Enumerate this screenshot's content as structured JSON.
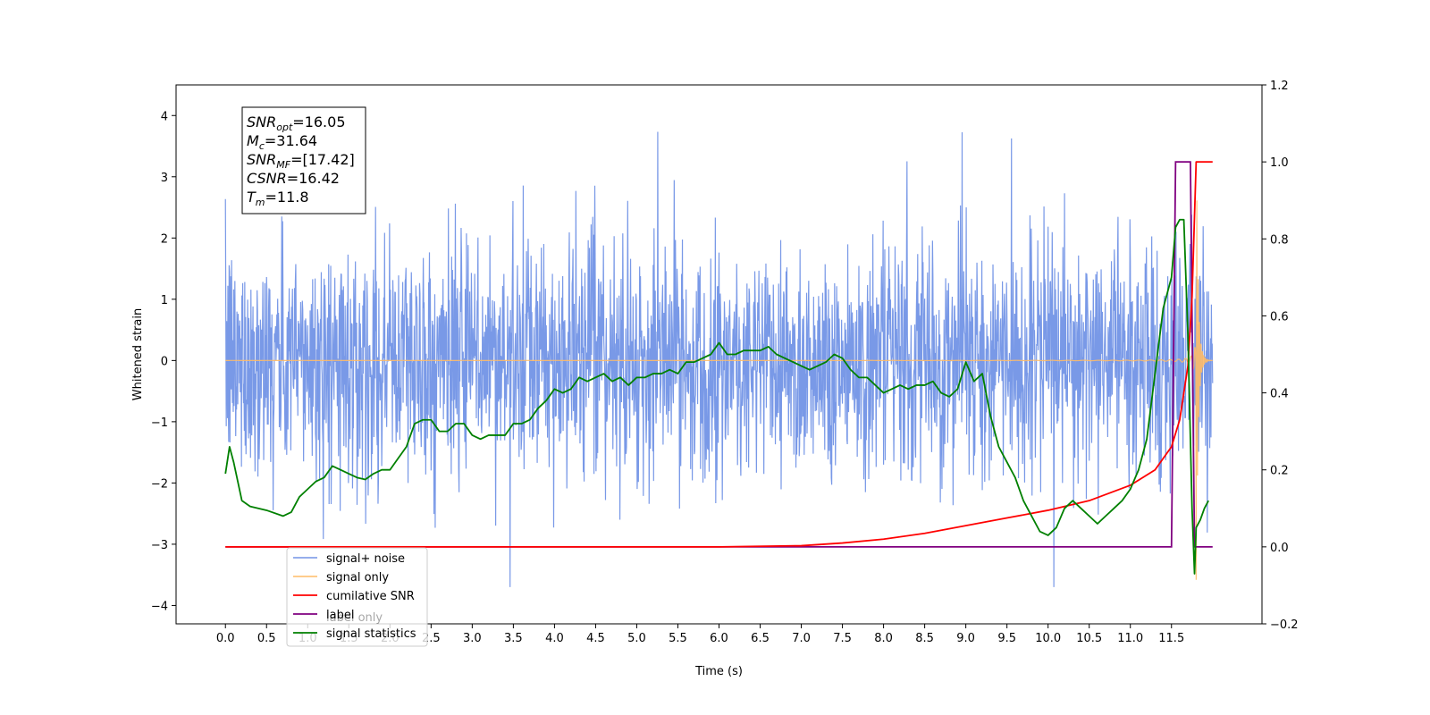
{
  "chart_data": {
    "type": "line",
    "xlabel": "Time (s)",
    "ylabel": "Whitened strain",
    "xlim": [
      -0.6,
      12.6
    ],
    "ylim_left": [
      -4.3,
      4.5
    ],
    "ylim_right": [
      -0.2,
      1.2
    ],
    "x_ticks": [
      "0.0",
      "0.5",
      "1.0",
      "1.5",
      "2.0",
      "2.5",
      "3.0",
      "3.5",
      "4.0",
      "4.5",
      "5.0",
      "5.5",
      "6.0",
      "6.5",
      "7.0",
      "7.5",
      "8.0",
      "8.5",
      "9.0",
      "9.5",
      "10.0",
      "10.5",
      "11.0",
      "11.5"
    ],
    "y_ticks_left": [
      4,
      3,
      2,
      1,
      0,
      -1,
      -2,
      -3,
      -4
    ],
    "y_ticks_left_labels": [
      "4",
      "3",
      "2",
      "1",
      "0",
      "−1",
      "−2",
      "−3",
      "−4"
    ],
    "y_ticks_right": [
      1.2,
      1.0,
      0.8,
      0.6,
      0.4,
      0.2,
      0.0,
      -0.2
    ],
    "y_ticks_right_labels": [
      "1.2",
      "1.0",
      "0.8",
      "0.6",
      "0.4",
      "0.2",
      "0.0",
      "−0.2"
    ],
    "grid": false,
    "legend_position": "lower-left",
    "stats_box": [
      {
        "main": "SNR",
        "sub": "opt",
        "value": "=16.05"
      },
      {
        "main": "M",
        "sub": "c",
        "value": "=31.64"
      },
      {
        "main": "SNR",
        "sub": "MF",
        "value": "=[17.42]"
      },
      {
        "main": "CSNR",
        "sub": "",
        "value": "=16.42"
      },
      {
        "main": "T",
        "sub": "m",
        "value": "=11.8"
      }
    ],
    "series": [
      {
        "name": "signal+ noise",
        "color": "#7293e6",
        "axis": "left",
        "x_range": [
          0.0,
          12.0
        ],
        "amplitude_std": 1.0,
        "peak": 4.1
      },
      {
        "name": "signal only",
        "color": "#ffbb66",
        "axis": "left",
        "x_range": [
          0.0,
          12.0
        ],
        "merger_time": 11.8,
        "peak_amplitude": 3.6
      },
      {
        "name": "cumilative SNR",
        "color": "#ff0000",
        "axis": "right",
        "x": [
          0.0,
          6.0,
          7.0,
          7.5,
          8.0,
          8.5,
          9.0,
          9.5,
          10.0,
          10.5,
          11.0,
          11.3,
          11.5,
          11.6,
          11.7,
          11.75,
          11.8,
          12.0
        ],
        "y": [
          0.0,
          0.0,
          0.003,
          0.01,
          0.02,
          0.035,
          0.055,
          0.075,
          0.095,
          0.12,
          0.16,
          0.2,
          0.26,
          0.33,
          0.47,
          0.65,
          1.0,
          1.0
        ]
      },
      {
        "name": "label",
        "color": "#800080",
        "axis": "right",
        "x": [
          0.0,
          11.5,
          11.55,
          11.73,
          11.78,
          12.0
        ],
        "y": [
          0.0,
          0.0,
          1.0,
          1.0,
          0.0,
          0.0
        ]
      },
      {
        "name": "label only",
        "color": "#800080",
        "axis": "right",
        "hidden_behind_legend": true
      },
      {
        "name": "signal statistics",
        "color": "#008000",
        "axis": "right",
        "x": [
          0.0,
          0.05,
          0.1,
          0.2,
          0.3,
          0.5,
          0.7,
          0.8,
          0.9,
          1.0,
          1.1,
          1.2,
          1.3,
          1.4,
          1.5,
          1.6,
          1.7,
          1.8,
          1.9,
          2.0,
          2.1,
          2.2,
          2.3,
          2.4,
          2.5,
          2.6,
          2.7,
          2.8,
          2.9,
          3.0,
          3.1,
          3.2,
          3.3,
          3.4,
          3.5,
          3.6,
          3.7,
          3.8,
          3.9,
          4.0,
          4.1,
          4.2,
          4.3,
          4.4,
          4.5,
          4.6,
          4.7,
          4.8,
          4.9,
          5.0,
          5.1,
          5.2,
          5.3,
          5.4,
          5.5,
          5.6,
          5.7,
          5.8,
          5.9,
          6.0,
          6.1,
          6.2,
          6.3,
          6.4,
          6.5,
          6.6,
          6.7,
          6.8,
          6.9,
          7.0,
          7.1,
          7.2,
          7.3,
          7.4,
          7.5,
          7.6,
          7.7,
          7.8,
          7.9,
          8.0,
          8.1,
          8.2,
          8.3,
          8.4,
          8.5,
          8.6,
          8.7,
          8.8,
          8.9,
          9.0,
          9.1,
          9.2,
          9.3,
          9.4,
          9.5,
          9.6,
          9.7,
          9.8,
          9.9,
          10.0,
          10.1,
          10.2,
          10.3,
          10.4,
          10.5,
          10.6,
          10.7,
          10.8,
          10.9,
          11.0,
          11.1,
          11.2,
          11.3,
          11.4,
          11.5,
          11.55,
          11.6,
          11.65,
          11.7,
          11.75,
          11.78,
          11.8,
          11.85,
          11.9,
          11.95
        ],
        "y": [
          0.19,
          0.26,
          0.22,
          0.12,
          0.105,
          0.095,
          0.08,
          0.09,
          0.13,
          0.15,
          0.17,
          0.18,
          0.21,
          0.2,
          0.19,
          0.18,
          0.175,
          0.19,
          0.2,
          0.2,
          0.23,
          0.26,
          0.32,
          0.33,
          0.33,
          0.3,
          0.3,
          0.32,
          0.32,
          0.29,
          0.28,
          0.29,
          0.29,
          0.29,
          0.32,
          0.32,
          0.33,
          0.36,
          0.38,
          0.41,
          0.4,
          0.41,
          0.44,
          0.43,
          0.44,
          0.45,
          0.43,
          0.44,
          0.42,
          0.44,
          0.44,
          0.45,
          0.45,
          0.46,
          0.45,
          0.48,
          0.48,
          0.49,
          0.5,
          0.53,
          0.5,
          0.5,
          0.51,
          0.51,
          0.51,
          0.52,
          0.5,
          0.49,
          0.48,
          0.47,
          0.46,
          0.47,
          0.48,
          0.5,
          0.49,
          0.46,
          0.44,
          0.44,
          0.42,
          0.4,
          0.41,
          0.42,
          0.41,
          0.42,
          0.42,
          0.43,
          0.4,
          0.39,
          0.41,
          0.48,
          0.43,
          0.45,
          0.34,
          0.26,
          0.22,
          0.18,
          0.12,
          0.08,
          0.04,
          0.03,
          0.05,
          0.1,
          0.12,
          0.1,
          0.08,
          0.06,
          0.08,
          0.1,
          0.12,
          0.15,
          0.2,
          0.28,
          0.45,
          0.62,
          0.7,
          0.83,
          0.85,
          0.85,
          0.55,
          0.1,
          -0.07,
          0.05,
          0.07,
          0.1,
          0.12
        ]
      }
    ]
  }
}
